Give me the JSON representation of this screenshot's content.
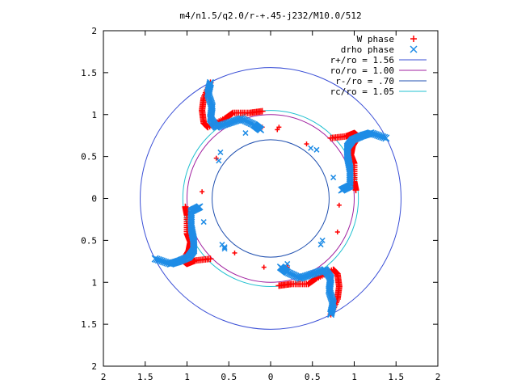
{
  "chart_data": {
    "type": "scatter",
    "title": "m4/n1.5/q2.0/r-+.45-j232/M10.0/512",
    "xlim": [
      -2,
      2
    ],
    "ylim": [
      -2,
      2
    ],
    "x_ticks": [
      {
        "value": -2,
        "label": "2"
      },
      {
        "value": -1.5,
        "label": "1.5"
      },
      {
        "value": -1,
        "label": "1"
      },
      {
        "value": -0.5,
        "label": "0.5"
      },
      {
        "value": 0,
        "label": "0"
      },
      {
        "value": 0.5,
        "label": "0.5"
      },
      {
        "value": 1,
        "label": "1"
      },
      {
        "value": 1.5,
        "label": "1.5"
      },
      {
        "value": 2,
        "label": "2"
      }
    ],
    "y_ticks": [
      {
        "value": 2,
        "label": "2"
      },
      {
        "value": 1.5,
        "label": "1.5"
      },
      {
        "value": 1,
        "label": "1"
      },
      {
        "value": 0.5,
        "label": "0.5"
      },
      {
        "value": 0,
        "label": "0"
      },
      {
        "value": -0.5,
        "label": "0.5"
      },
      {
        "value": -1,
        "label": "1"
      },
      {
        "value": -1.5,
        "label": "1.5"
      },
      {
        "value": -2,
        "label": "2"
      }
    ],
    "grid": false,
    "legend_position": "top-right",
    "circles": [
      {
        "name": "r+/ro = 1.56",
        "radius": 1.56,
        "color": "#3a4fd6"
      },
      {
        "name": "ro/ro = 1.00",
        "radius": 1.0,
        "color": "#a020a0"
      },
      {
        "name": "r-/ro = .70",
        "radius": 0.7,
        "color": "#2050b0"
      },
      {
        "name": "rc/ro = 1.05",
        "radius": 1.05,
        "color": "#20c0d0"
      }
    ],
    "series": [
      {
        "name": "W phase",
        "marker": "+",
        "color": "#ff0000",
        "arms": [
          [
            [
              0.72,
              0.72
            ],
            [
              0.9,
              0.74
            ],
            [
              1.0,
              0.78
            ],
            [
              1.05,
              0.74
            ],
            [
              0.98,
              0.62
            ],
            [
              0.96,
              0.52
            ],
            [
              1.0,
              0.42
            ],
            [
              1.0,
              0.2
            ],
            [
              1.02,
              0.1
            ]
          ],
          [
            [
              -0.72,
              -0.72
            ],
            [
              -0.9,
              -0.74
            ],
            [
              -1.0,
              -0.78
            ],
            [
              -1.05,
              -0.74
            ],
            [
              -0.98,
              -0.62
            ],
            [
              -0.96,
              -0.52
            ],
            [
              -1.0,
              -0.42
            ],
            [
              -1.0,
              -0.2
            ],
            [
              -1.02,
              -0.1
            ]
          ],
          [
            [
              -0.72,
              1.38
            ],
            [
              -0.8,
              1.2
            ],
            [
              -0.82,
              1.05
            ],
            [
              -0.8,
              0.9
            ],
            [
              -0.75,
              0.85
            ],
            [
              -0.55,
              0.95
            ],
            [
              -0.45,
              1.02
            ],
            [
              -0.25,
              1.02
            ],
            [
              -0.1,
              1.04
            ]
          ],
          [
            [
              0.72,
              -1.38
            ],
            [
              0.8,
              -1.2
            ],
            [
              0.82,
              -1.05
            ],
            [
              0.8,
              -0.9
            ],
            [
              0.75,
              -0.85
            ],
            [
              0.55,
              -0.95
            ],
            [
              0.45,
              -1.02
            ],
            [
              0.25,
              -1.02
            ],
            [
              0.1,
              -1.04
            ]
          ]
        ],
        "extra_points": [
          [
            -0.65,
            0.48
          ],
          [
            -0.82,
            0.08
          ],
          [
            0.82,
            -0.08
          ],
          [
            0.43,
            0.65
          ],
          [
            -0.43,
            -0.65
          ],
          [
            0.2,
            -0.82
          ],
          [
            -0.08,
            -0.82
          ],
          [
            0.08,
            0.82
          ],
          [
            -0.1,
            0.85
          ],
          [
            0.1,
            0.85
          ],
          [
            0.8,
            -0.4
          ]
        ]
      },
      {
        "name": "drho phase",
        "marker": "x",
        "color": "#1e8ce6",
        "arms": [
          [
            [
              1.38,
              0.72
            ],
            [
              1.2,
              0.78
            ],
            [
              1.1,
              0.75
            ],
            [
              0.98,
              0.7
            ],
            [
              0.92,
              0.62
            ],
            [
              0.92,
              0.5
            ],
            [
              0.95,
              0.35
            ],
            [
              0.95,
              0.15
            ],
            [
              0.85,
              0.1
            ]
          ],
          [
            [
              -1.38,
              -0.72
            ],
            [
              -1.2,
              -0.78
            ],
            [
              -1.1,
              -0.75
            ],
            [
              -0.98,
              -0.7
            ],
            [
              -0.92,
              -0.62
            ],
            [
              -0.92,
              -0.5
            ],
            [
              -0.95,
              -0.35
            ],
            [
              -0.95,
              -0.15
            ],
            [
              -0.85,
              -0.1
            ]
          ],
          [
            [
              -0.72,
              1.38
            ],
            [
              -0.75,
              1.25
            ],
            [
              -0.7,
              1.1
            ],
            [
              -0.72,
              0.95
            ],
            [
              -0.65,
              0.85
            ],
            [
              -0.5,
              0.9
            ],
            [
              -0.35,
              0.95
            ],
            [
              -0.2,
              0.88
            ],
            [
              -0.12,
              0.82
            ]
          ],
          [
            [
              0.72,
              -1.38
            ],
            [
              0.75,
              -1.25
            ],
            [
              0.7,
              -1.1
            ],
            [
              0.72,
              -0.95
            ],
            [
              0.65,
              -0.85
            ],
            [
              0.5,
              -0.9
            ],
            [
              0.35,
              -0.95
            ],
            [
              0.2,
              -0.88
            ],
            [
              0.12,
              -0.82
            ]
          ]
        ],
        "extra_points": [
          [
            -0.6,
            0.55
          ],
          [
            -0.62,
            0.45
          ],
          [
            0.48,
            0.6
          ],
          [
            0.55,
            0.58
          ],
          [
            -0.58,
            -0.55
          ],
          [
            -0.55,
            -0.6
          ],
          [
            0.62,
            -0.5
          ],
          [
            0.6,
            -0.55
          ],
          [
            -0.8,
            -0.28
          ],
          [
            0.75,
            0.25
          ],
          [
            0.2,
            -0.78
          ],
          [
            -0.3,
            0.78
          ],
          [
            -0.55,
            -0.58
          ]
        ]
      }
    ]
  }
}
